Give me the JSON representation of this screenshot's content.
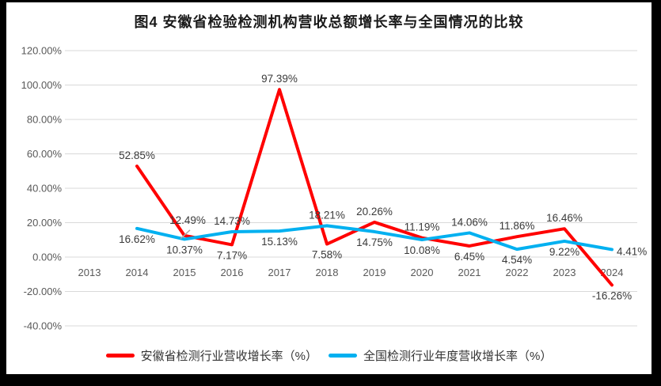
{
  "colors": {
    "grid": "#D9D9D9",
    "axis_text": "#595959",
    "data_label_text": "#3A3A3A",
    "title_text": "#1A1A1A",
    "leader_line": "#A6A6A6",
    "frame": "#000000",
    "paper": "#FFFFFF"
  },
  "chart_data": {
    "type": "line",
    "title": "图4 安徽省检验检测机构营收总额增长率与全国情况的比较",
    "categories": [
      "2013",
      "2014",
      "2015",
      "2016",
      "2017",
      "2018",
      "2019",
      "2020",
      "2021",
      "2022",
      "2023",
      "2024"
    ],
    "xlabel": "",
    "ylabel": "",
    "y_axis": {
      "tick_labels": [
        "120.00%",
        "100.00%",
        "80.00%",
        "60.00%",
        "40.00%",
        "20.00%",
        "0.00%",
        "-20.00%",
        "-40.00%"
      ],
      "tick_values": [
        120,
        100,
        80,
        60,
        40,
        20,
        0,
        -20,
        -40
      ],
      "min": -40,
      "max": 120,
      "format": "0.00%"
    },
    "grid": "horizontal",
    "legend_position": "bottom",
    "series": [
      {
        "key": "anhui",
        "name": "安徽省检测行业营收增长率（%）",
        "color": "#FF0000",
        "values": [
          null,
          52.85,
          12.49,
          7.17,
          97.39,
          7.58,
          20.26,
          11.19,
          6.45,
          11.86,
          16.46,
          -16.26
        ],
        "label_sides": [
          null,
          "a",
          "al",
          "b",
          "a",
          "b",
          "a",
          "a",
          "b",
          "a",
          "a",
          "b"
        ]
      },
      {
        "key": "national",
        "name": "全国检测行业年度营收增长率（%）",
        "color": "#00B0F0",
        "values": [
          null,
          16.62,
          10.37,
          14.73,
          15.13,
          18.21,
          14.75,
          10.08,
          14.06,
          4.54,
          9.22,
          4.41
        ],
        "label_sides": [
          null,
          "b",
          "b",
          "a",
          "b",
          "a",
          "b",
          "b",
          "a",
          "b",
          "b",
          "r"
        ]
      }
    ]
  }
}
